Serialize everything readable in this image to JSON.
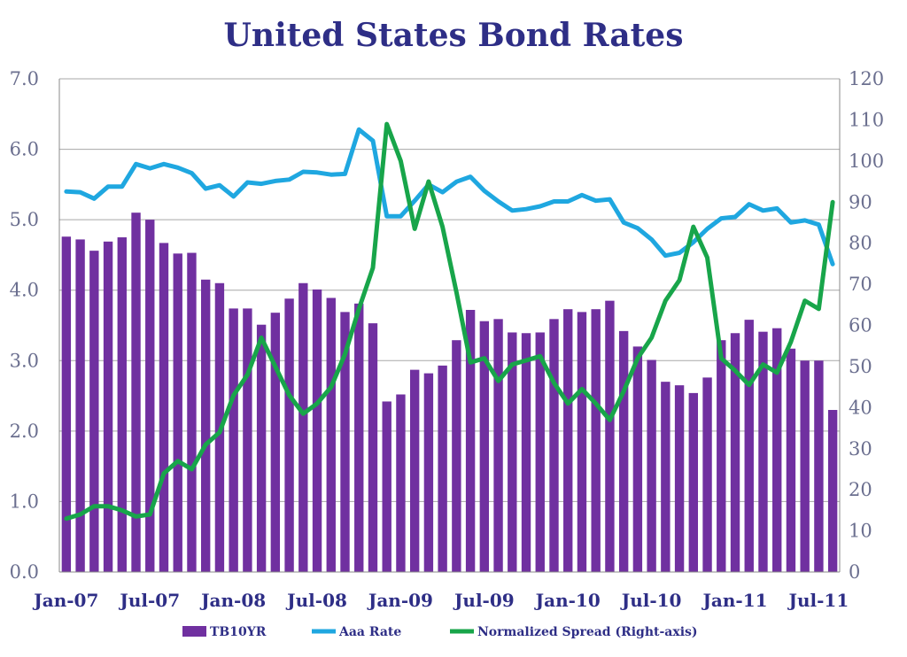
{
  "chart_data": {
    "type": "bar",
    "title": "United States Bond Rates",
    "xlabel": "",
    "ylabel": "",
    "y2label": "",
    "ylim": [
      0,
      7
    ],
    "y2lim": [
      0,
      120
    ],
    "y_ticks": [
      "0.0",
      "1.0",
      "2.0",
      "3.0",
      "4.0",
      "5.0",
      "6.0",
      "7.0"
    ],
    "y2_ticks": [
      "0",
      "10",
      "20",
      "30",
      "40",
      "50",
      "60",
      "70",
      "80",
      "90",
      "100",
      "110",
      "120"
    ],
    "x_tick_labels": [
      "Jan-07",
      "Jul-07",
      "Jan-08",
      "Jul-08",
      "Jan-09",
      "Jul-09",
      "Jan-10",
      "Jul-10",
      "Jan-11",
      "Jul-11"
    ],
    "grid": true,
    "legend_position": "bottom",
    "categories": [
      "Jan-07",
      "Feb-07",
      "Mar-07",
      "Apr-07",
      "May-07",
      "Jun-07",
      "Jul-07",
      "Aug-07",
      "Sep-07",
      "Oct-07",
      "Nov-07",
      "Dec-07",
      "Jan-08",
      "Feb-08",
      "Mar-08",
      "Apr-08",
      "May-08",
      "Jun-08",
      "Jul-08",
      "Aug-08",
      "Sep-08",
      "Oct-08",
      "Nov-08",
      "Dec-08",
      "Jan-09",
      "Feb-09",
      "Mar-09",
      "Apr-09",
      "May-09",
      "Jun-09",
      "Jul-09",
      "Aug-09",
      "Sep-09",
      "Oct-09",
      "Nov-09",
      "Dec-09",
      "Jan-10",
      "Feb-10",
      "Mar-10",
      "Apr-10",
      "May-10",
      "Jun-10",
      "Jul-10",
      "Aug-10",
      "Sep-10",
      "Oct-10",
      "Nov-10",
      "Dec-10",
      "Jan-11",
      "Feb-11",
      "Mar-11",
      "Apr-11",
      "May-11",
      "Jun-11",
      "Jul-11",
      "Aug-11"
    ],
    "series": [
      {
        "name": "TB10YR",
        "type": "bar",
        "axis": "left",
        "color": "#7030a0",
        "values": [
          4.76,
          4.72,
          4.56,
          4.69,
          4.75,
          5.1,
          5.0,
          4.67,
          4.52,
          4.53,
          4.15,
          4.1,
          3.74,
          3.74,
          3.51,
          3.68,
          3.88,
          4.1,
          4.01,
          3.89,
          3.69,
          3.81,
          3.53,
          2.42,
          2.52,
          2.87,
          2.82,
          2.93,
          3.29,
          3.72,
          3.56,
          3.59,
          3.4,
          3.39,
          3.4,
          3.59,
          3.73,
          3.69,
          3.73,
          3.85,
          3.42,
          3.2,
          3.01,
          2.7,
          2.65,
          2.54,
          2.76,
          3.29,
          3.39,
          3.58,
          3.41,
          3.46,
          3.17,
          3.0,
          3.0,
          2.3
        ]
      },
      {
        "name": "Aaa Rate",
        "type": "line",
        "axis": "left",
        "color": "#1fa7e0",
        "values": [
          5.4,
          5.39,
          5.3,
          5.47,
          5.47,
          5.79,
          5.73,
          5.79,
          5.74,
          5.66,
          5.44,
          5.49,
          5.33,
          5.53,
          5.51,
          5.55,
          5.57,
          5.68,
          5.67,
          5.64,
          5.65,
          6.28,
          6.12,
          5.05,
          5.05,
          5.27,
          5.5,
          5.39,
          5.54,
          5.61,
          5.41,
          5.26,
          5.13,
          5.15,
          5.19,
          5.26,
          5.26,
          5.35,
          5.27,
          5.29,
          4.96,
          4.88,
          4.72,
          4.49,
          4.53,
          4.68,
          4.87,
          5.02,
          5.04,
          5.22,
          5.13,
          5.16,
          4.96,
          4.99,
          4.93,
          4.37
        ]
      },
      {
        "name": "Normalized Spread (Right-axis)",
        "type": "line",
        "axis": "right",
        "color": "#18a54a",
        "values": [
          13,
          14,
          16,
          16,
          15,
          13.5,
          14,
          24,
          27,
          25,
          31,
          34,
          43,
          48,
          57,
          50,
          43,
          38.5,
          41,
          45,
          53,
          64,
          74,
          109,
          100,
          83.5,
          95,
          84,
          68,
          51,
          52,
          46.5,
          50.5,
          51.5,
          52.5,
          46,
          41,
          44.5,
          41,
          37,
          44,
          52,
          57,
          66,
          71,
          84,
          76.5,
          52,
          49,
          45.5,
          50.5,
          48.5,
          56,
          66,
          64,
          90
        ]
      }
    ]
  }
}
